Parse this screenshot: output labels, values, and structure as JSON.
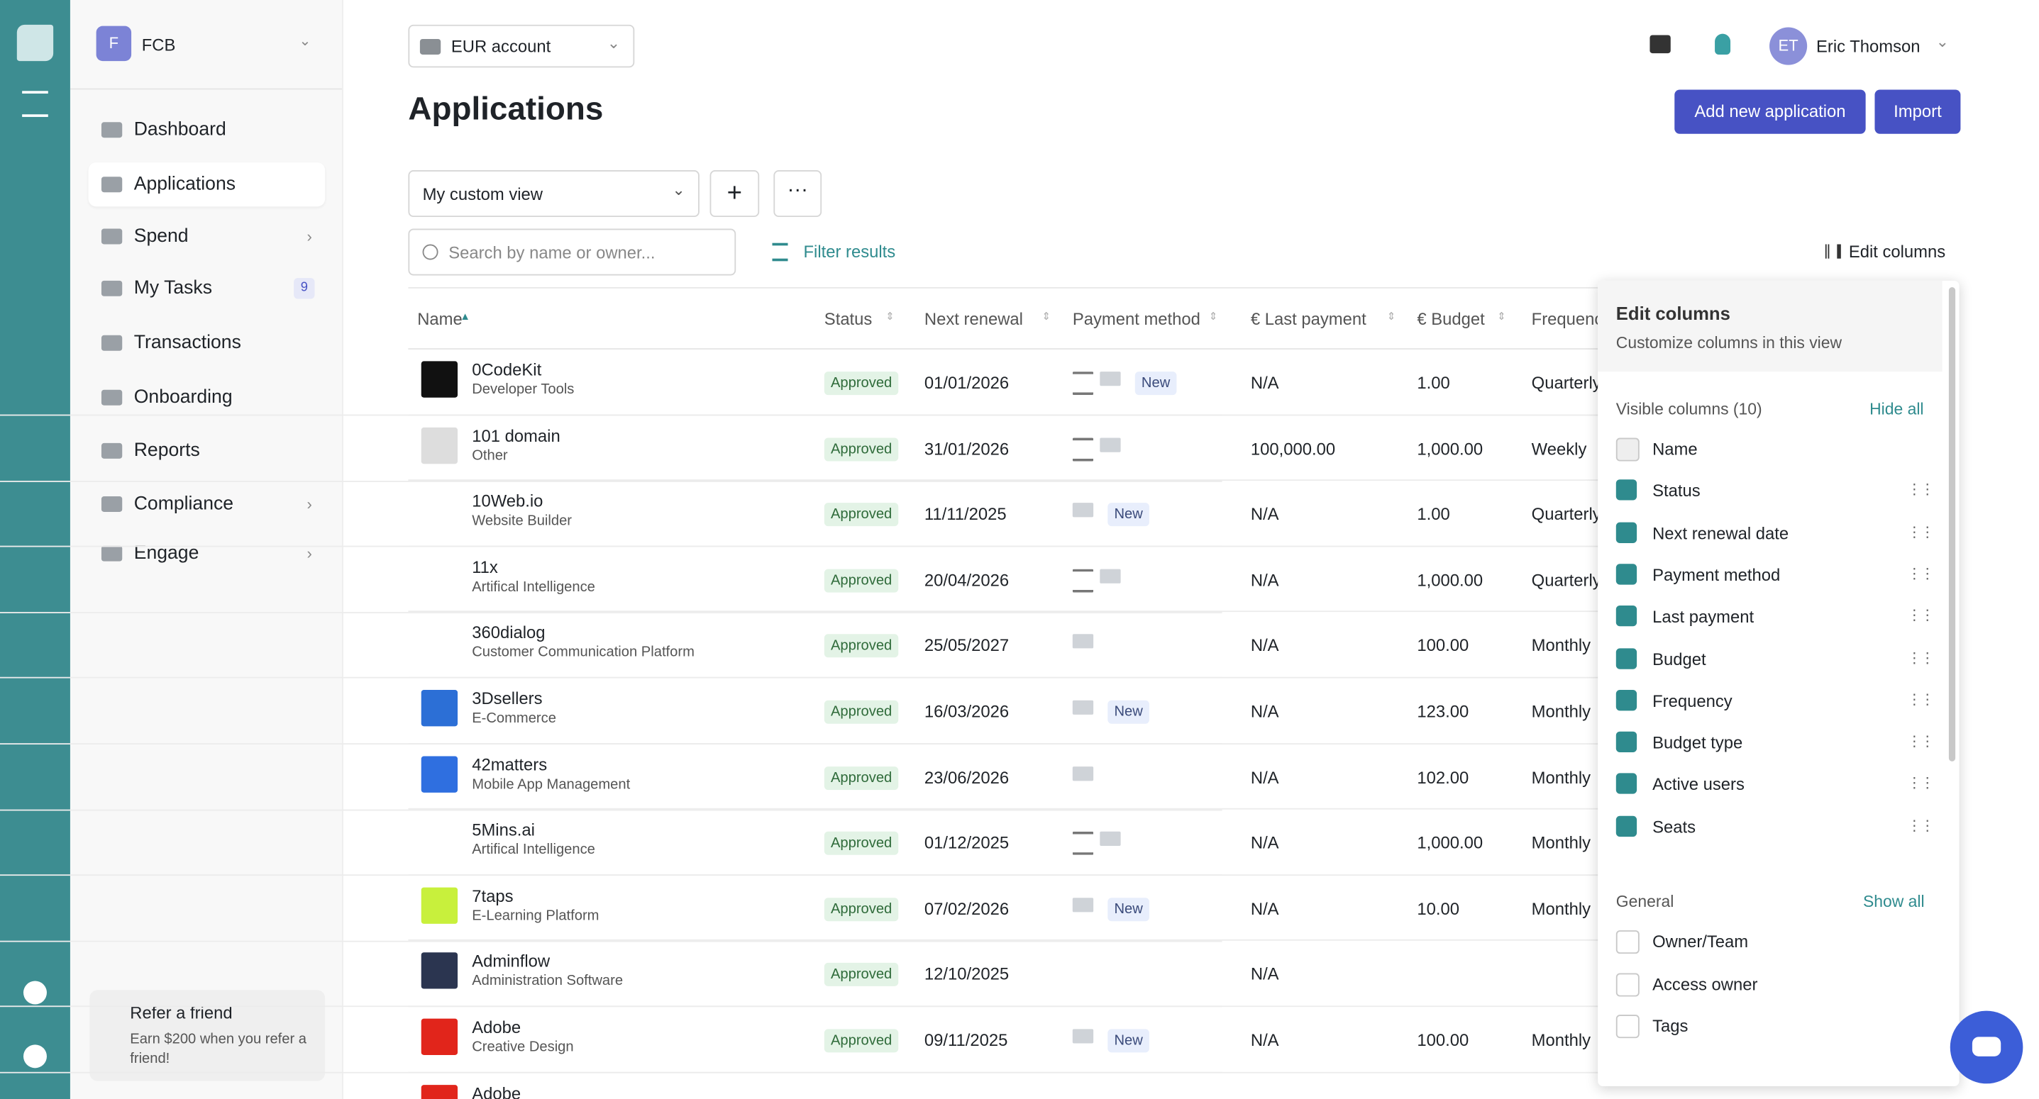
{
  "sidebar": {
    "org_initial": "F",
    "org_name": "FCB",
    "nav": [
      "Dashboard",
      "Applications",
      "Spend",
      "My Tasks",
      "Transactions",
      "Onboarding",
      "Reports",
      "Compliance",
      "Engage"
    ],
    "tasks_badge": "9",
    "refer": {
      "title": "Refer a friend",
      "text": "Earn $200 when you refer a friend!"
    }
  },
  "header": {
    "account": "EUR account",
    "user_initials": "ET",
    "user_name": "Eric Thomson",
    "title": "Applications",
    "add_button": "Add new application",
    "import_button": "Import",
    "view": "My custom view",
    "search_placeholder": "Search by name or owner...",
    "filter": "Filter results",
    "edit_columns": "Edit columns"
  },
  "table": {
    "columns": [
      "Name",
      "Status",
      "Next renewal",
      "Payment method",
      "€ Last payment",
      "€ Budget",
      "Frequency"
    ],
    "rows": [
      {
        "name": "0CodeKit",
        "category": "Developer Tools",
        "status": "Approved",
        "renewal": "01/01/2026",
        "tag": "New",
        "last_payment": "N/A",
        "budget": "1.00",
        "frequency": "Quarterly"
      },
      {
        "name": "101 domain",
        "category": "Other",
        "status": "Approved",
        "renewal": "31/01/2026",
        "last_payment": "100,000.00",
        "budget": "1,000.00",
        "frequency": "Weekly"
      },
      {
        "name": "10Web.io",
        "category": "Website Builder",
        "status": "Approved",
        "renewal": "11/11/2025",
        "tag": "New",
        "last_payment": "N/A",
        "budget": "1.00",
        "frequency": "Quarterly"
      },
      {
        "name": "11x",
        "category": "Artifical Intelligence",
        "status": "Approved",
        "renewal": "20/04/2026",
        "last_payment": "N/A",
        "budget": "1,000.00",
        "frequency": "Quarterly"
      },
      {
        "name": "360dialog",
        "category": "Customer Communication Platform",
        "status": "Approved",
        "renewal": "25/05/2027",
        "last_payment": "N/A",
        "budget": "100.00",
        "frequency": "Monthly"
      },
      {
        "name": "3Dsellers",
        "category": "E-Commerce",
        "status": "Approved",
        "renewal": "16/03/2026",
        "tag": "New",
        "last_payment": "N/A",
        "budget": "123.00",
        "frequency": "Monthly"
      },
      {
        "name": "42matters",
        "category": "Mobile App Management",
        "status": "Approved",
        "renewal": "23/06/2026",
        "last_payment": "N/A",
        "budget": "102.00",
        "frequency": "Monthly"
      },
      {
        "name": "5Mins.ai",
        "category": "Artifical Intelligence",
        "status": "Approved",
        "renewal": "01/12/2025",
        "last_payment": "N/A",
        "budget": "1,000.00",
        "frequency": "Monthly"
      },
      {
        "name": "7taps",
        "category": "E-Learning Platform",
        "status": "Approved",
        "renewal": "07/02/2026",
        "tag": "New",
        "last_payment": "N/A",
        "budget": "10.00",
        "frequency": "Monthly"
      },
      {
        "name": "Adminflow",
        "category": "Administration Software",
        "status": "Approved",
        "renewal": "12/10/2025",
        "last_payment": "N/A"
      },
      {
        "name": "Adobe",
        "category": "Creative Design",
        "status": "Approved",
        "renewal": "09/11/2025",
        "tag": "New",
        "last_payment": "N/A",
        "budget": "100.00",
        "frequency": "Monthly"
      },
      {
        "name": "Adobe"
      }
    ]
  },
  "panel": {
    "title": "Edit columns",
    "subtitle": "Customize columns in this view",
    "visible_heading": "Visible columns (10)",
    "hide_all": "Hide all",
    "visible": [
      "Name",
      "Status",
      "Next renewal date",
      "Payment method",
      "Last payment",
      "Budget",
      "Frequency",
      "Budget type",
      "Active users",
      "Seats"
    ],
    "general_heading": "General",
    "show_all": "Show all",
    "general": [
      "Owner/Team",
      "Access owner",
      "Tags"
    ]
  }
}
